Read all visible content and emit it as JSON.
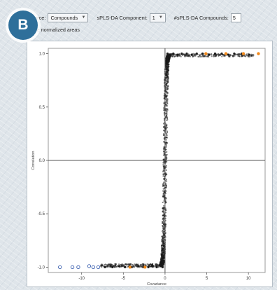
{
  "badge": {
    "label": "B"
  },
  "toolbar": {
    "source_label": "Source:",
    "source_value": "Compounds",
    "component_label": "sPLS-DA Component:",
    "component_value": "1",
    "compounds_label": "#sPLS-DA Compounds:",
    "compounds_value": "5"
  },
  "options": {
    "normalized_label": "Use normalized areas"
  },
  "colors": {
    "points": "#1a1a1a",
    "selected": "#f28a1d",
    "blue_points": "#3a5fb0",
    "axis": "#555555"
  },
  "chart_data": {
    "type": "scatter",
    "title": "",
    "xlabel": "Covariance",
    "ylabel": "Correlation",
    "xlim": [
      -14,
      12
    ],
    "ylim": [
      -1.05,
      1.05
    ],
    "x_ticks": [
      -10,
      -5,
      0,
      5,
      10
    ],
    "y_ticks": [
      -1.0,
      -0.5,
      0.0,
      0.5,
      1.0
    ],
    "x_tick_labels": [
      "-10",
      "-5",
      "0",
      "5",
      "10"
    ],
    "y_tick_labels": [
      "-1.0",
      "-0.5",
      "0.0",
      "0.5",
      "1.0"
    ],
    "reference_lines": {
      "x": 0,
      "y": 0
    },
    "series": [
      {
        "points": [
          [
            -0.3,
            -1.0
          ],
          [
            -0.5,
            -0.99
          ],
          [
            -1.0,
            -1.0
          ],
          [
            -1.5,
            -0.99
          ],
          [
            -2.0,
            -1.0
          ],
          [
            -2.6,
            -1.0
          ],
          [
            -3.2,
            -0.99
          ],
          [
            -4.0,
            -1.0
          ],
          [
            -4.8,
            -1.0
          ],
          [
            -5.5,
            -0.99
          ],
          [
            -6.3,
            -1.0
          ],
          [
            -7.2,
            -1.0
          ],
          [
            -0.2,
            -0.95
          ],
          [
            -0.3,
            -0.9
          ],
          [
            -0.15,
            -0.8
          ],
          [
            -0.1,
            -0.6
          ],
          [
            -0.05,
            -0.3
          ],
          [
            0.0,
            0.0
          ],
          [
            0.05,
            0.3
          ],
          [
            0.1,
            0.6
          ],
          [
            0.15,
            0.8
          ],
          [
            0.3,
            0.9
          ],
          [
            0.2,
            0.95
          ],
          [
            0.3,
            1.0
          ],
          [
            0.6,
            0.99
          ],
          [
            1.0,
            1.0
          ],
          [
            1.5,
            0.99
          ],
          [
            2.0,
            1.0
          ],
          [
            2.6,
            1.0
          ],
          [
            3.2,
            0.99
          ],
          [
            3.8,
            1.0
          ],
          [
            4.5,
            1.0
          ],
          [
            5.3,
            0.99
          ],
          [
            6.0,
            1.0
          ],
          [
            6.8,
            1.0
          ],
          [
            7.6,
            0.99
          ],
          [
            8.3,
            1.0
          ],
          [
            9.2,
            1.0
          ],
          [
            10.1,
            0.99
          ]
        ]
      },
      {
        "points": [
          [
            -8.0,
            -1.0
          ],
          [
            -8.6,
            -1.0
          ],
          [
            -9.1,
            -0.99
          ],
          [
            -10.4,
            -1.0
          ],
          [
            -11.1,
            -1.0
          ],
          [
            -12.6,
            -1.0
          ]
        ]
      },
      {
        "points": [
          [
            -2.4,
            -1.0
          ],
          [
            -4.2,
            -1.0
          ],
          [
            4.9,
            1.0
          ],
          [
            7.3,
            1.0
          ],
          [
            9.4,
            1.0
          ],
          [
            11.2,
            1.0
          ]
        ]
      }
    ]
  }
}
